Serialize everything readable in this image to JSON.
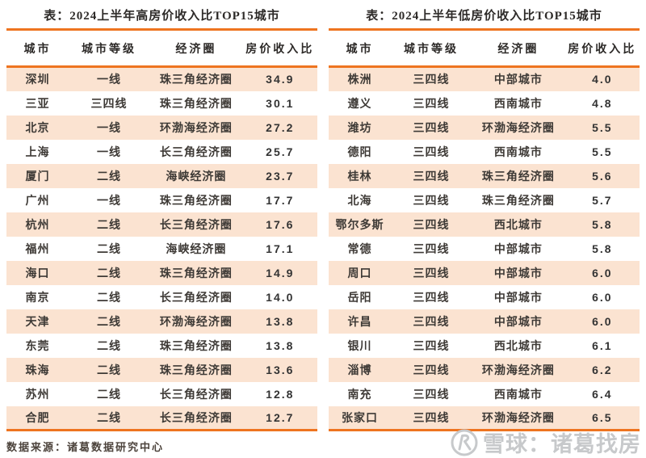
{
  "colors": {
    "accent_orange": "#ee7420",
    "row_shade": "#fbe3d1",
    "cell_text": "#3e3a36",
    "watermark_gray": "#c7c9cb"
  },
  "chart_data": [
    {
      "type": "table",
      "title": "表：2024上半年高房价收入比TOP15城市",
      "columns": [
        "城市",
        "城市等级",
        "经济圈",
        "房价收入比"
      ],
      "rows": [
        [
          "深圳",
          "一线",
          "珠三角经济圈",
          "34.9"
        ],
        [
          "三亚",
          "三四线",
          "珠三角经济圈",
          "30.1"
        ],
        [
          "北京",
          "一线",
          "环渤海经济圈",
          "27.2"
        ],
        [
          "上海",
          "一线",
          "长三角经济圈",
          "25.7"
        ],
        [
          "厦门",
          "二线",
          "海峡经济圈",
          "23.7"
        ],
        [
          "广州",
          "一线",
          "珠三角经济圈",
          "17.7"
        ],
        [
          "杭州",
          "二线",
          "长三角经济圈",
          "17.6"
        ],
        [
          "福州",
          "二线",
          "海峡经济圈",
          "17.1"
        ],
        [
          "海口",
          "二线",
          "珠三角经济圈",
          "14.9"
        ],
        [
          "南京",
          "二线",
          "长三角经济圈",
          "14.0"
        ],
        [
          "天津",
          "二线",
          "环渤海经济圈",
          "13.8"
        ],
        [
          "东莞",
          "二线",
          "珠三角经济圈",
          "13.8"
        ],
        [
          "珠海",
          "二线",
          "珠三角经济圈",
          "13.6"
        ],
        [
          "苏州",
          "二线",
          "长三角经济圈",
          "12.8"
        ],
        [
          "合肥",
          "二线",
          "长三角经济圈",
          "12.7"
        ]
      ]
    },
    {
      "type": "table",
      "title": "表：2024上半年低房价收入比TOP15城市",
      "columns": [
        "城市",
        "城市等级",
        "经济圈",
        "房价收入比"
      ],
      "rows": [
        [
          "株洲",
          "三四线",
          "中部城市",
          "4.0"
        ],
        [
          "遵义",
          "三四线",
          "西南城市",
          "4.8"
        ],
        [
          "潍坊",
          "三四线",
          "环渤海经济圈",
          "5.5"
        ],
        [
          "德阳",
          "三四线",
          "西南城市",
          "5.5"
        ],
        [
          "桂林",
          "三四线",
          "珠三角经济圈",
          "5.6"
        ],
        [
          "北海",
          "三四线",
          "珠三角经济圈",
          "5.7"
        ],
        [
          "鄂尔多斯",
          "三四线",
          "西北城市",
          "5.8"
        ],
        [
          "常德",
          "三四线",
          "中部城市",
          "5.8"
        ],
        [
          "周口",
          "三四线",
          "中部城市",
          "6.0"
        ],
        [
          "岳阳",
          "三四线",
          "中部城市",
          "6.0"
        ],
        [
          "许昌",
          "三四线",
          "中部城市",
          "6.0"
        ],
        [
          "银川",
          "三四线",
          "西北城市",
          "6.1"
        ],
        [
          "淄博",
          "三四线",
          "环渤海经济圈",
          "6.2"
        ],
        [
          "南充",
          "三四线",
          "西南城市",
          "6.4"
        ],
        [
          "张家口",
          "三四线",
          "环渤海经济圈",
          "6.5"
        ]
      ]
    }
  ],
  "footer": {
    "source": "数据来源：诸葛数据研究中心"
  },
  "watermark": {
    "text": "雪球：诸葛找房",
    "logo": "xueqiu-circle-logo"
  }
}
